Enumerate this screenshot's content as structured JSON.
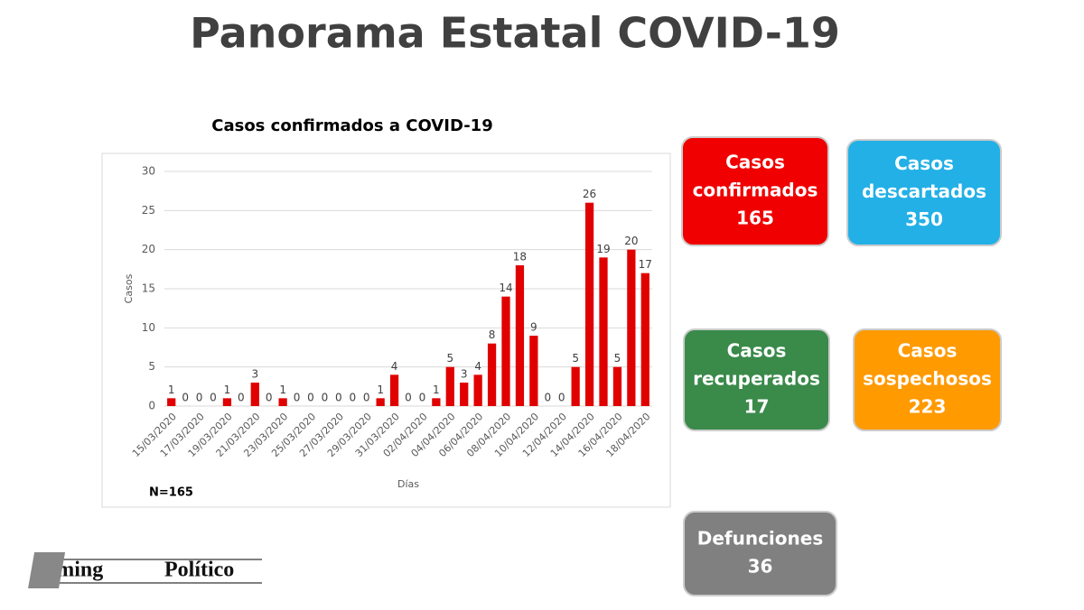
{
  "header": {
    "title": "Panorama Estatal COVID-19"
  },
  "chart_data": {
    "type": "bar",
    "title": "Casos confirmados a COVID-19",
    "x_label": "Días",
    "y_label": "Casos",
    "note": "N=165",
    "color": "#e00000",
    "grid": true,
    "categories": [
      "15/03/2020",
      null,
      "17/03/2020",
      null,
      "19/03/2020",
      null,
      "21/03/2020",
      null,
      "23/03/2020",
      null,
      "25/03/2020",
      null,
      "27/03/2020",
      null,
      "29/03/2020",
      null,
      "31/03/2020",
      null,
      "02/04/2020",
      null,
      "04/04/2020",
      null,
      "06/04/2020",
      null,
      "08/04/2020",
      null,
      "10/04/2020",
      null,
      "12/04/2020",
      null,
      "14/04/2020",
      null,
      "16/04/2020",
      null,
      "18/04/2020"
    ],
    "values": [
      1,
      0,
      0,
      0,
      1,
      0,
      3,
      0,
      1,
      0,
      0,
      0,
      0,
      0,
      0,
      1,
      4,
      0,
      0,
      1,
      5,
      3,
      4,
      8,
      14,
      18,
      9,
      0,
      0,
      5,
      26,
      19,
      5,
      20,
      17
    ],
    "ylim": [
      0,
      30
    ],
    "yticks": [
      0,
      5,
      10,
      15,
      20,
      25,
      30
    ]
  },
  "boxes": [
    {
      "label": [
        "Casos",
        "confirmados"
      ],
      "value": 165,
      "color": "#f00000"
    },
    {
      "label": [
        "Casos",
        "descartados"
      ],
      "value": 350,
      "color": "#22b0e6"
    },
    {
      "label": [
        "Casos",
        "recuperados"
      ],
      "value": 17,
      "color": "#3a8a4a"
    },
    {
      "label": [
        "Casos",
        "sospechosos"
      ],
      "value": 223,
      "color": "#ff9a00"
    },
    {
      "label": [
        "Defunciones"
      ],
      "value": 36,
      "color": "#808080"
    }
  ],
  "logo": {
    "left": "Timing",
    "right": "Político"
  }
}
